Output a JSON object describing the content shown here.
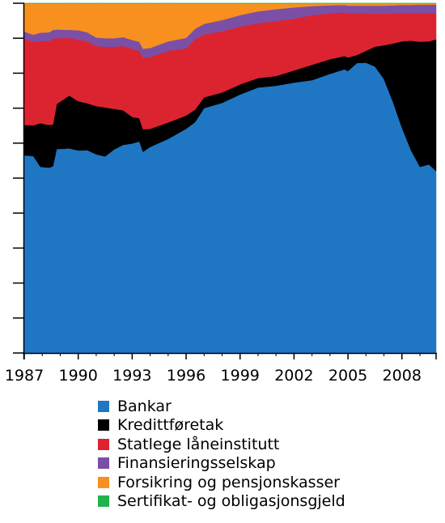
{
  "chart_data": {
    "type": "area",
    "stacked": true,
    "normalized": true,
    "title": "",
    "xlabel": "",
    "ylabel": "",
    "xlim": [
      1987,
      2009.9
    ],
    "ylim": [
      0,
      100
    ],
    "x_ticks": [
      1987,
      1990,
      1993,
      1996,
      1999,
      2002,
      2005,
      2008
    ],
    "x_tick_labels": [
      "1987",
      "1990",
      "1993",
      "1996",
      "1999",
      "2002",
      "2005",
      "2008"
    ],
    "y_ticks": [
      0,
      10,
      20,
      30,
      40,
      50,
      60,
      70,
      80,
      90,
      100
    ],
    "grid": false,
    "legend_position": "bottom",
    "x": [
      1987.0,
      1987.5,
      1987.9,
      1988.4,
      1988.6,
      1988.8,
      1989.5,
      1990.0,
      1990.5,
      1991.0,
      1991.5,
      1992.0,
      1992.5,
      1993.0,
      1993.4,
      1993.6,
      1994.0,
      1995.0,
      1996.0,
      1996.5,
      1997.0,
      1998.0,
      1999.0,
      2000.0,
      2001.0,
      2002.0,
      2003.0,
      2004.0,
      2004.8,
      2005.0,
      2005.5,
      2006.0,
      2006.5,
      2007.0,
      2007.5,
      2008.0,
      2008.5,
      2009.0,
      2009.5,
      2009.9
    ],
    "series": [
      {
        "name": "Bankar",
        "color": "#1f77c4",
        "values": [
          56.5,
          56.3,
          53.2,
          53.0,
          53.4,
          58.3,
          58.5,
          57.9,
          58.0,
          56.8,
          56.2,
          58.2,
          59.5,
          59.9,
          60.5,
          57.5,
          58.9,
          61.2,
          64.1,
          66.0,
          70.0,
          71.5,
          73.9,
          75.9,
          76.4,
          77.3,
          78.0,
          79.8,
          81.1,
          80.6,
          82.9,
          83.0,
          81.9,
          78.3,
          71.8,
          64.4,
          58.0,
          53.2,
          53.9,
          52.0
        ]
      },
      {
        "name": "Kredittføretak",
        "color": "#000000",
        "values": [
          8.7,
          8.8,
          12.5,
          12.2,
          12.0,
          12.9,
          15.1,
          14.1,
          13.4,
          13.8,
          14.0,
          11.6,
          9.9,
          7.6,
          6.6,
          6.5,
          5.2,
          4.7,
          3.8,
          3.6,
          3.1,
          3.0,
          2.9,
          2.7,
          2.8,
          3.5,
          4.4,
          4.2,
          3.8,
          3.9,
          2.3,
          3.4,
          5.7,
          9.7,
          16.7,
          24.7,
          31.3,
          35.8,
          35.2,
          37.7
        ]
      },
      {
        "name": "Statlege låneinstitutt",
        "color": "#dc2430",
        "values": [
          24.7,
          23.9,
          23.5,
          24.0,
          24.5,
          18.8,
          16.5,
          17.6,
          17.7,
          17.2,
          17.3,
          17.7,
          18.4,
          19.5,
          19.3,
          20.5,
          20.5,
          20.5,
          19.2,
          20.1,
          18.0,
          17.5,
          16.5,
          15.7,
          15.7,
          14.8,
          14.2,
          13.1,
          12.5,
          12.6,
          11.9,
          10.7,
          9.4,
          9.0,
          8.6,
          8.1,
          7.8,
          8.1,
          8.0,
          7.5
        ]
      },
      {
        "name": "Finansieringsselskap",
        "color": "#7b4fa5",
        "values": [
          2.0,
          2.0,
          2.4,
          2.5,
          2.5,
          2.5,
          2.3,
          2.7,
          2.6,
          2.4,
          2.5,
          2.5,
          2.5,
          2.5,
          2.6,
          2.5,
          2.6,
          2.7,
          3.0,
          3.0,
          3.0,
          3.2,
          3.3,
          3.4,
          3.4,
          3.2,
          2.6,
          2.3,
          2.1,
          2.2,
          2.2,
          2.2,
          2.3,
          2.3,
          2.3,
          2.3,
          2.4,
          2.5,
          2.5,
          2.4
        ]
      },
      {
        "name": "Forsikring og pensjonskasser",
        "color": "#f7901e",
        "values": [
          8.1,
          9.0,
          8.4,
          8.3,
          7.6,
          7.5,
          7.6,
          7.7,
          8.3,
          9.8,
          10.0,
          10.0,
          9.7,
          10.5,
          11.0,
          13.0,
          12.8,
          10.9,
          9.9,
          7.3,
          5.9,
          4.8,
          3.4,
          2.3,
          1.7,
          1.2,
          0.8,
          0.6,
          0.5,
          0.7,
          0.7,
          0.7,
          0.7,
          0.7,
          0.6,
          0.5,
          0.5,
          0.4,
          0.4,
          0.4
        ]
      },
      {
        "name": "Sertifikat- og obligasjonsgjeld",
        "color": "#20b34a",
        "values": [
          0,
          0,
          0,
          0,
          0,
          0,
          0,
          0,
          0,
          0,
          0,
          0,
          0,
          0,
          0,
          0,
          0,
          0,
          0,
          0,
          0,
          0,
          0,
          0,
          0,
          0,
          0,
          0,
          0,
          0,
          0,
          0,
          0,
          0,
          0,
          0,
          0,
          0,
          0,
          0
        ]
      }
    ]
  }
}
